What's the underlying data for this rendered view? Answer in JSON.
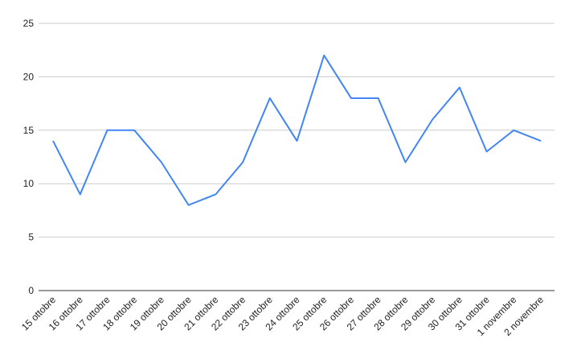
{
  "chart_data": {
    "type": "line",
    "title": "",
    "xlabel": "",
    "ylabel": "",
    "ylim": [
      0,
      25
    ],
    "yticks": [
      "0",
      "5",
      "10",
      "15",
      "20",
      "25"
    ],
    "grid": true,
    "categories": [
      "15 ottobre",
      "16 ottobre",
      "17 ottobre",
      "18 ottobre",
      "19 ottobre",
      "20 ottobre",
      "21 ottobre",
      "22 ottobre",
      "23 ottobre",
      "24 ottobre",
      "25 ottobre",
      "26 ottobre",
      "27 ottobre",
      "28 ottobre",
      "29 ottobre",
      "30 ottobre",
      "31 ottobre",
      "1 novembre",
      "2 novembre"
    ],
    "series": [
      {
        "values": [
          14,
          9,
          15,
          15,
          12,
          8,
          9,
          12,
          18,
          14,
          22,
          18,
          18,
          12,
          16,
          19,
          13,
          15,
          14
        ],
        "color": "#4285f4"
      }
    ]
  }
}
